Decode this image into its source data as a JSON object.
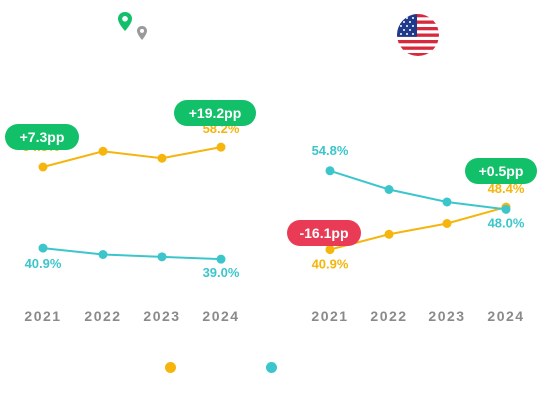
{
  "colors": {
    "series_a": "#F5B50C",
    "series_b": "#3CC6CC",
    "positive": "#12C06A",
    "negative": "#EA3B56",
    "axis_text": "#8A8A8A",
    "pin_green": "#12C06A",
    "pin_gray": "#9A9A9A"
  },
  "icons": {
    "left_panel": "location-pins-icon",
    "right_panel": "us-flag-icon"
  },
  "chart_data": [
    {
      "type": "line",
      "categories": [
        "2021",
        "2022",
        "2023",
        "2024"
      ],
      "series": [
        {
          "values": [
            54.8,
            57.5,
            56.3,
            58.2
          ],
          "color": "#F5B50C"
        },
        {
          "values": [
            40.9,
            39.8,
            39.4,
            39.0
          ],
          "color": "#3CC6CC"
        }
      ],
      "labels": [
        {
          "series": 0,
          "index": 0,
          "text": "54.8%"
        },
        {
          "series": 0,
          "index": 3,
          "text": "58.2%"
        },
        {
          "series": 1,
          "index": 0,
          "text": "40.9%"
        },
        {
          "series": 1,
          "index": 3,
          "text": "39.0%"
        }
      ],
      "badges": [
        {
          "text": "+7.3pp",
          "tone": "positive"
        },
        {
          "text": "+19.2pp",
          "tone": "positive"
        }
      ]
    },
    {
      "type": "line",
      "categories": [
        "2021",
        "2022",
        "2023",
        "2024"
      ],
      "series": [
        {
          "values": [
            40.9,
            43.6,
            45.5,
            48.4
          ],
          "color": "#F5B50C"
        },
        {
          "values": [
            54.8,
            51.5,
            49.3,
            48.0
          ],
          "color": "#3CC6CC"
        }
      ],
      "labels": [
        {
          "series": 0,
          "index": 0,
          "text": "40.9%"
        },
        {
          "series": 0,
          "index": 3,
          "text": "48.4%"
        },
        {
          "series": 1,
          "index": 0,
          "text": "54.8%"
        },
        {
          "series": 1,
          "index": 3,
          "text": "48.0%"
        }
      ],
      "badges": [
        {
          "text": "-16.1pp",
          "tone": "negative"
        },
        {
          "text": "+0.5pp",
          "tone": "positive"
        }
      ]
    }
  ],
  "legend": [
    {
      "color": "#F5B50C"
    },
    {
      "color": "#3CC6CC"
    }
  ]
}
